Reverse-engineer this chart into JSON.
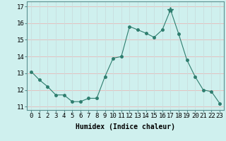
{
  "x": [
    0,
    1,
    2,
    3,
    4,
    5,
    6,
    7,
    8,
    9,
    10,
    11,
    12,
    13,
    14,
    15,
    16,
    17,
    18,
    19,
    20,
    21,
    22,
    23
  ],
  "y": [
    13.1,
    12.6,
    12.2,
    11.7,
    11.7,
    11.3,
    11.3,
    11.5,
    11.5,
    12.8,
    13.9,
    14.0,
    15.8,
    15.6,
    15.4,
    15.15,
    15.6,
    16.8,
    15.35,
    13.8,
    12.8,
    12.0,
    11.9,
    11.2
  ],
  "line_color": "#2e7d6e",
  "marker": "o",
  "bg_color": "#cff0ee",
  "grid_color_h": "#e8b8b8",
  "grid_color_v": "#c8dede",
  "xlabel": "Humidex (Indice chaleur)",
  "xlabel_fontsize": 7,
  "tick_fontsize": 6.5,
  "ylim": [
    10.8,
    17.3
  ],
  "yticks": [
    11,
    12,
    13,
    14,
    15,
    16,
    17
  ],
  "xlim": [
    -0.5,
    23.5
  ],
  "xticks": [
    0,
    1,
    2,
    3,
    4,
    5,
    6,
    7,
    8,
    9,
    10,
    11,
    12,
    13,
    14,
    15,
    16,
    17,
    18,
    19,
    20,
    21,
    22,
    23
  ],
  "xtick_labels": [
    "0",
    "1",
    "2",
    "3",
    "4",
    "5",
    "6",
    "7",
    "8",
    "9",
    "10",
    "11",
    "12",
    "13",
    "14",
    "15",
    "16",
    "17",
    "18",
    "19",
    "20",
    "21",
    "22",
    "23"
  ]
}
